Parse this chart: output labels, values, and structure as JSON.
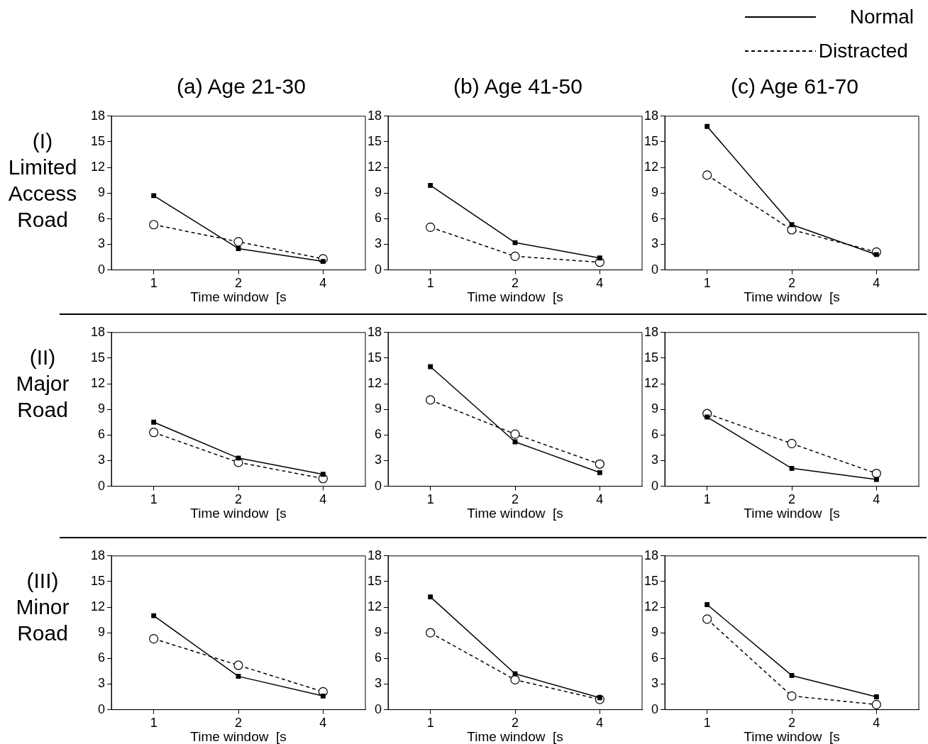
{
  "chart_data": [
    {
      "type": "line",
      "title": "(a) Age 21-30",
      "ylabel": "(I) Limited Access Road",
      "xlabel": "Time window  [s",
      "categories": [
        "1",
        "2",
        "4"
      ],
      "ylim": [
        0,
        18
      ],
      "yticks": [
        0,
        3,
        6,
        9,
        12,
        15,
        18
      ],
      "grid": false,
      "legend": false,
      "series": [
        {
          "color": "#000000",
          "marker": "square",
          "line_style": "solid",
          "values": [
            8.7,
            2.5,
            1.0
          ]
        },
        {
          "color": "#000000",
          "marker": "circle",
          "line_style": "dashed",
          "values": [
            5.3,
            3.3,
            1.3
          ]
        }
      ]
    },
    {
      "type": "line",
      "title": "(b) Age 41-50",
      "xlabel": "Time window  [s",
      "categories": [
        "1",
        "2",
        "4"
      ],
      "ylim": [
        0,
        18
      ],
      "yticks": [
        0,
        3,
        6,
        9,
        12,
        15,
        18
      ],
      "grid": false,
      "legend": false,
      "series": [
        {
          "color": "#000000",
          "marker": "square",
          "line_style": "solid",
          "values": [
            9.9,
            3.2,
            1.4
          ]
        },
        {
          "color": "#000000",
          "marker": "circle",
          "line_style": "dashed",
          "values": [
            5.0,
            1.6,
            0.9
          ]
        }
      ]
    },
    {
      "type": "line",
      "title": "(c) Age 61-70",
      "xlabel": "Time window  [s",
      "categories": [
        "1",
        "2",
        "4"
      ],
      "ylim": [
        0,
        18
      ],
      "yticks": [
        0,
        3,
        6,
        9,
        12,
        15,
        18
      ],
      "grid": false,
      "legend": "top right",
      "series": [
        {
          "name": "Normal",
          "color": "#000000",
          "marker": "square",
          "line_style": "solid",
          "values": [
            16.8,
            5.3,
            1.8
          ]
        },
        {
          "name": "Distracted",
          "color": "#000000",
          "marker": "circle",
          "line_style": "dashed",
          "values": [
            11.1,
            4.7,
            2.1
          ]
        }
      ]
    },
    {
      "type": "line",
      "ylabel": "(II) Major Road",
      "xlabel": "Time window  [s",
      "categories": [
        "1",
        "2",
        "4"
      ],
      "ylim": [
        0,
        18
      ],
      "yticks": [
        0,
        3,
        6,
        9,
        12,
        15,
        18
      ],
      "grid": false,
      "legend": false,
      "series": [
        {
          "color": "#000000",
          "marker": "square",
          "line_style": "solid",
          "values": [
            7.5,
            3.3,
            1.4
          ]
        },
        {
          "color": "#000000",
          "marker": "circle",
          "line_style": "dashed",
          "values": [
            6.3,
            2.8,
            0.9
          ]
        }
      ]
    },
    {
      "type": "line",
      "xlabel": "Time window  [s",
      "categories": [
        "1",
        "2",
        "4"
      ],
      "ylim": [
        0,
        18
      ],
      "yticks": [
        0,
        3,
        6,
        9,
        12,
        15,
        18
      ],
      "grid": false,
      "legend": false,
      "series": [
        {
          "color": "#000000",
          "marker": "square",
          "line_style": "solid",
          "values": [
            14.0,
            5.2,
            1.6
          ]
        },
        {
          "color": "#000000",
          "marker": "circle",
          "line_style": "dashed",
          "values": [
            10.1,
            6.1,
            2.6
          ]
        }
      ]
    },
    {
      "type": "line",
      "xlabel": "Time window  [s",
      "categories": [
        "1",
        "2",
        "4"
      ],
      "ylim": [
        0,
        18
      ],
      "yticks": [
        0,
        3,
        6,
        9,
        12,
        15,
        18
      ],
      "grid": false,
      "legend": false,
      "series": [
        {
          "color": "#000000",
          "marker": "square",
          "line_style": "solid",
          "values": [
            8.1,
            2.1,
            0.8
          ]
        },
        {
          "color": "#000000",
          "marker": "circle",
          "line_style": "dashed",
          "values": [
            8.5,
            5.0,
            1.5
          ]
        }
      ]
    },
    {
      "type": "line",
      "ylabel": "(III) Minor Road",
      "xlabel": "Time window  [s",
      "categories": [
        "1",
        "2",
        "4"
      ],
      "ylim": [
        0,
        18
      ],
      "yticks": [
        0,
        3,
        6,
        9,
        12,
        15,
        18
      ],
      "grid": false,
      "legend": false,
      "series": [
        {
          "color": "#000000",
          "marker": "square",
          "line_style": "solid",
          "values": [
            11.0,
            3.9,
            1.6
          ]
        },
        {
          "color": "#000000",
          "marker": "circle",
          "line_style": "dashed",
          "values": [
            8.3,
            5.2,
            2.1
          ]
        }
      ]
    },
    {
      "type": "line",
      "xlabel": "Time window  [s",
      "categories": [
        "1",
        "2",
        "4"
      ],
      "ylim": [
        0,
        18
      ],
      "yticks": [
        0,
        3,
        6,
        9,
        12,
        15,
        18
      ],
      "grid": false,
      "legend": false,
      "series": [
        {
          "color": "#000000",
          "marker": "square",
          "line_style": "solid",
          "values": [
            13.2,
            4.2,
            1.4
          ]
        },
        {
          "color": "#000000",
          "marker": "circle",
          "line_style": "dashed",
          "values": [
            9.0,
            3.5,
            1.2
          ]
        }
      ]
    },
    {
      "type": "line",
      "xlabel": "Time window  [s",
      "categories": [
        "1",
        "2",
        "4"
      ],
      "ylim": [
        0,
        18
      ],
      "yticks": [
        0,
        3,
        6,
        9,
        12,
        15,
        18
      ],
      "grid": false,
      "legend": false,
      "series": [
        {
          "color": "#000000",
          "marker": "square",
          "line_style": "solid",
          "values": [
            12.3,
            4.0,
            1.5
          ]
        },
        {
          "color": "#000000",
          "marker": "circle",
          "line_style": "dashed",
          "values": [
            10.6,
            1.6,
            0.6
          ]
        }
      ]
    }
  ]
}
